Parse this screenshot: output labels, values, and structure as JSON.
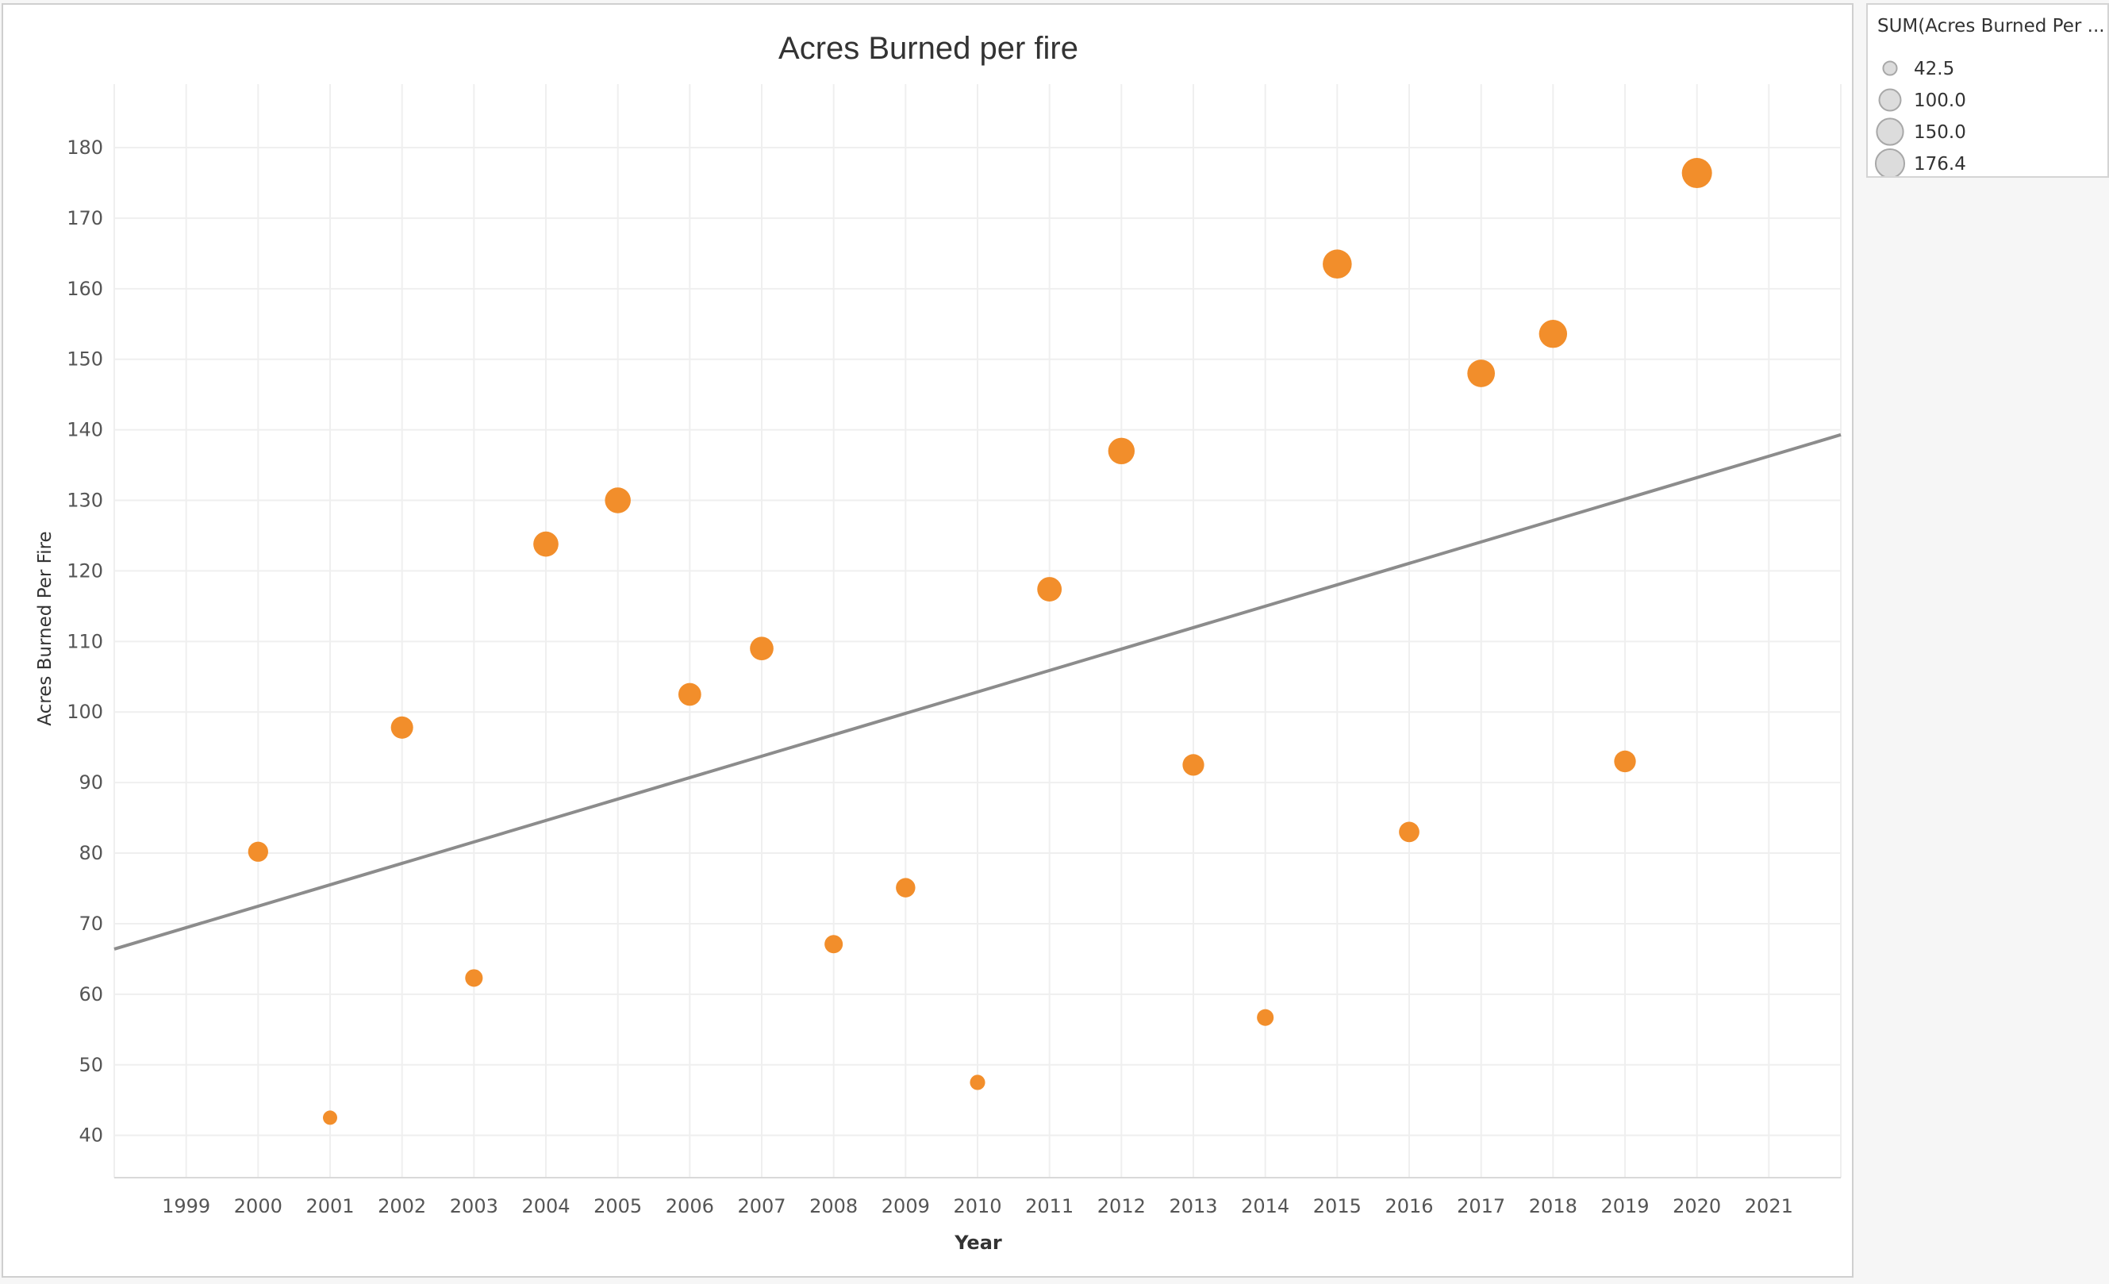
{
  "chart_data": {
    "type": "scatter",
    "title": "Acres Burned per fire",
    "xlabel": "Year",
    "ylabel": "Acres Burned Per Fire",
    "xlim": [
      1998,
      2022
    ],
    "ylim": [
      34,
      189
    ],
    "x_ticks": [
      1999,
      2000,
      2001,
      2002,
      2003,
      2004,
      2005,
      2006,
      2007,
      2008,
      2009,
      2010,
      2011,
      2012,
      2013,
      2014,
      2015,
      2016,
      2017,
      2018,
      2019,
      2020,
      2021
    ],
    "y_ticks": [
      40,
      50,
      60,
      70,
      80,
      90,
      100,
      110,
      120,
      130,
      140,
      150,
      160,
      170,
      180
    ],
    "grid": true,
    "series": [
      {
        "x": [
          2000,
          2001,
          2002,
          2003,
          2004,
          2005,
          2006,
          2007,
          2008,
          2009,
          2010,
          2011,
          2012,
          2013,
          2014,
          2015,
          2016,
          2017,
          2018,
          2019,
          2020
        ],
        "y": [
          80.2,
          42.5,
          97.8,
          62.3,
          123.8,
          130.0,
          102.5,
          109.0,
          67.1,
          75.1,
          47.5,
          117.4,
          137.0,
          92.5,
          56.7,
          163.5,
          83.0,
          148.0,
          153.6,
          93.0,
          176.4
        ],
        "size_by": "y",
        "color": "#f28e2b"
      }
    ],
    "trend_line": {
      "type": "linear",
      "x": [
        1998,
        2022
      ],
      "y": [
        66.4,
        139.3
      ],
      "color": "#8c8c8c"
    },
    "legend": {
      "title": "SUM(Acres Burned Per ...",
      "placement": "right",
      "entries": [
        "42.5",
        "100.0",
        "150.0",
        "176.4"
      ],
      "sizes": [
        42.5,
        100.0,
        150.0,
        176.4
      ]
    }
  }
}
